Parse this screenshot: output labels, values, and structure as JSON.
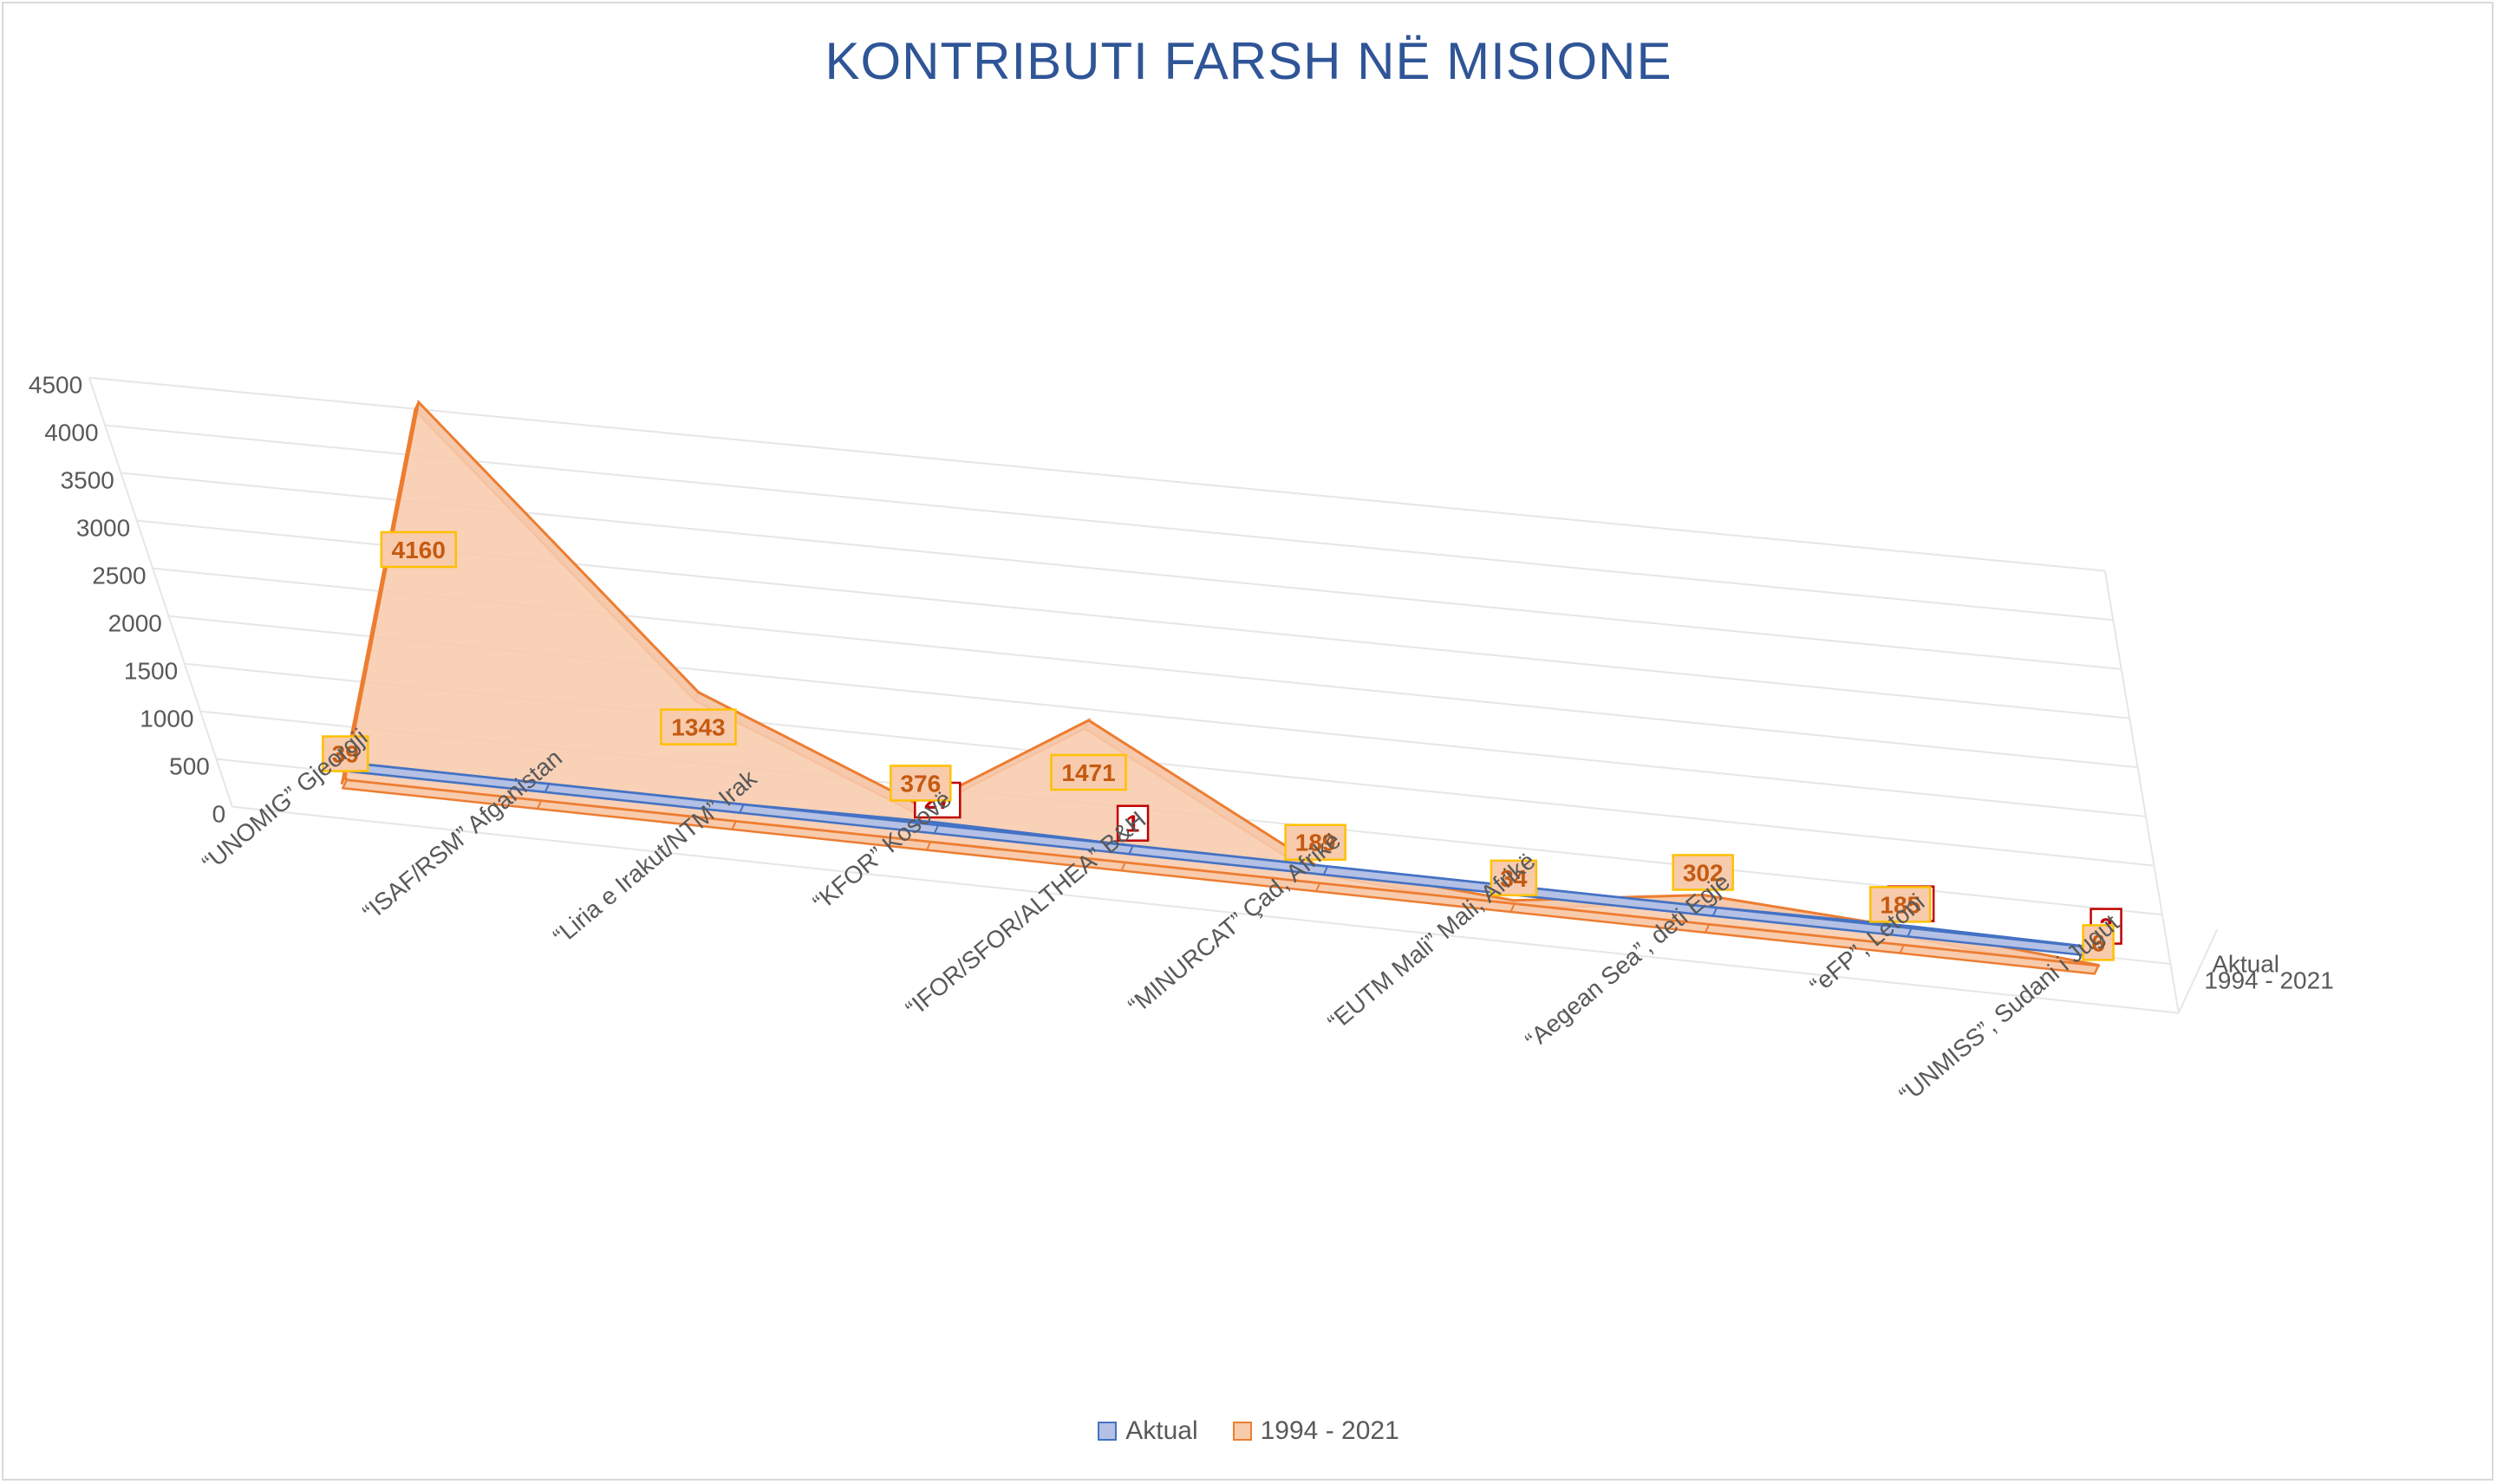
{
  "chart_data": {
    "type": "area",
    "title": "KONTRIBUTI FARSH NË MISIONE",
    "categories": [
      "“UNOMIG” Gjeorgji",
      "“ISAF/RSM” Afganistan",
      "“Liria e Irakut/NTM” Irak",
      "“KFOR” Kosovë",
      "“IFOR/SFOR/ALTHEA” B&H",
      "“MINURCAT” Çad, Afrikë",
      "“EUTM Mali” Mali, Afrikë",
      "“Aegean Sea”, deti Egje",
      "“eFP”, Letoni",
      "“UNMISS”, Sudani i Jugut"
    ],
    "series": [
      {
        "name": "Aktual",
        "values": [
          0,
          0,
          0,
          27,
          1,
          0,
          0,
          0,
          21,
          2
        ],
        "labels": [
          "",
          "",
          "",
          "27",
          "1",
          "",
          "",
          "",
          "21",
          "2"
        ]
      },
      {
        "name": "1994 - 2021",
        "values": [
          39,
          4160,
          1343,
          376,
          1471,
          189,
          34,
          302,
          185,
          6
        ],
        "labels": [
          "39",
          "4160",
          "1343",
          "376",
          "1471",
          "189",
          "34",
          "302",
          "185",
          "6"
        ]
      }
    ],
    "yticks": [
      "0",
      "500",
      "1000",
      "1500",
      "2000",
      "2500",
      "3000",
      "3500",
      "4000",
      "4500"
    ],
    "ylim": [
      0,
      4500
    ],
    "grid": true,
    "legend_position": "bottom",
    "series_axis_labels": [
      "Aktual",
      "1994 - 2021"
    ]
  },
  "colors": {
    "aktual_fill": "#b4c0e4",
    "aktual_stroke": "#4472c4",
    "series2_fill": "#f8cbad",
    "series2_fill_dark": "#ddb39c",
    "series2_stroke": "#ed7d31",
    "title": "#2f5597",
    "grid": "#e6e6e6",
    "axis_text": "#595959",
    "label_orange": "#c55a11",
    "label_red": "#c00000",
    "label_box_gold": "#ffc000"
  },
  "legend": [
    {
      "label": "Aktual",
      "color": "#b4c0e4",
      "border": "#4472c4"
    },
    {
      "label": "1994 - 2021",
      "color": "#f8cbad",
      "border": "#ed7d31"
    }
  ]
}
